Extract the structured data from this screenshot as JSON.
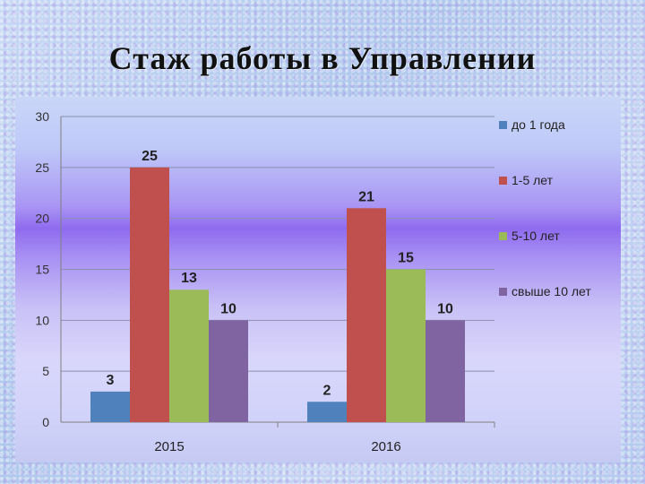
{
  "slide": {
    "title": "Стаж работы в Управлении"
  },
  "chart_data": {
    "type": "bar",
    "title": "",
    "xlabel": "",
    "ylabel": "",
    "categories": [
      "2015",
      "2016"
    ],
    "series": [
      {
        "name": "до 1 года",
        "values": [
          3,
          2
        ],
        "color": "#4f81bd"
      },
      {
        "name": "1-5 лет",
        "values": [
          25,
          21
        ],
        "color": "#c0504d"
      },
      {
        "name": "5-10 лет",
        "values": [
          13,
          15
        ],
        "color": "#9bbb59"
      },
      {
        "name": "свыше 10 лет",
        "values": [
          10,
          10
        ],
        "color": "#8064a2"
      }
    ],
    "ylim": [
      0,
      30
    ],
    "yticks": [
      0,
      5,
      10,
      15,
      20,
      25,
      30
    ],
    "grid": true,
    "legend": "right"
  }
}
